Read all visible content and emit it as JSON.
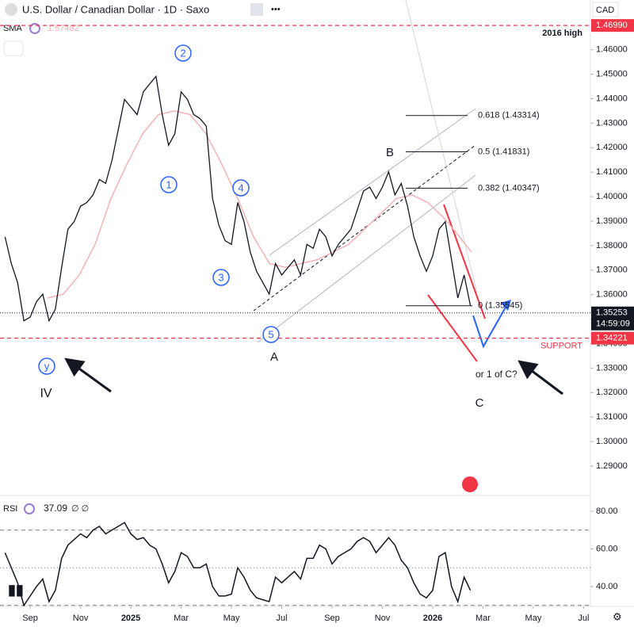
{
  "chart_data": {
    "type": "line",
    "title": "U.S. Dollar / Canadian Dollar · 1D · Saxo",
    "currency": "CAD",
    "color": "#131722",
    "x": [
      7,
      7.25,
      7.5,
      7.75,
      8,
      8.25,
      8.5,
      8.75,
      9,
      9.25,
      9.5,
      9.75,
      10,
      10.25,
      10.5,
      10.75,
      11,
      11.25,
      11.5,
      11.75,
      12,
      12.25,
      12.5,
      12.75,
      13,
      13.25,
      13.5,
      13.75,
      14,
      14.25,
      14.5,
      14.75,
      15,
      15.25,
      15.5,
      15.75,
      16,
      16.25,
      16.5,
      16.75,
      17,
      17.25,
      17.5,
      17.75,
      18,
      18.25,
      18.5,
      18.75,
      19,
      19.25,
      19.5,
      19.75,
      20,
      20.25,
      20.5,
      20.75,
      21,
      21.25,
      21.5,
      21.75,
      22,
      22.25,
      22.5,
      22.75,
      23,
      23.25,
      23.5,
      23.75,
      24,
      24.25,
      24.5,
      24.75,
      25,
      25.25,
      25.5
    ],
    "values": [
      1.3836,
      1.3727,
      1.3649,
      1.3493,
      1.3508,
      1.3571,
      1.3602,
      1.3493,
      1.354,
      1.3711,
      1.3867,
      1.3898,
      1.3961,
      1.3976,
      1.4007,
      1.407,
      1.4054,
      1.4148,
      1.4273,
      1.4397,
      1.4366,
      1.4335,
      1.4428,
      1.446,
      1.4491,
      1.4335,
      1.421,
      1.4257,
      1.4428,
      1.4397,
      1.4335,
      1.4319,
      1.4288,
      1.3992,
      1.3883,
      1.382,
      1.3805,
      1.3976,
      1.3898,
      1.3773,
      1.3695,
      1.3649,
      1.3602,
      1.3727,
      1.368,
      1.3711,
      1.3742,
      1.368,
      1.3805,
      1.3789,
      1.3867,
      1.3836,
      1.3758,
      1.3805,
      1.3836,
      1.3867,
      1.3945,
      1.4023,
      1.4039,
      1.3992,
      1.4039,
      1.4101,
      1.4007,
      1.4054,
      1.3961,
      1.3836,
      1.3758,
      1.3695,
      1.3758,
      1.3867,
      1.3898,
      1.3742,
      1.3586,
      1.368,
      1.3555
    ],
    "sma": {
      "name": "SMA",
      "value_label": "1.57482",
      "color": "#f4b2b5",
      "x": [
        8.69,
        9.32,
        9.95,
        10.58,
        11.21,
        11.84,
        12.47,
        13.1,
        13.73,
        14.36,
        14.99,
        15.62,
        16.25,
        16.88,
        17.51,
        18.14,
        18.77,
        19.4,
        20.03,
        20.66,
        21.29,
        21.92,
        22.55,
        23.18,
        23.81,
        24.44,
        25.07,
        25.54
      ],
      "values": [
        1.3586,
        1.3602,
        1.368,
        1.3805,
        1.3992,
        1.4132,
        1.4257,
        1.4335,
        1.435,
        1.4335,
        1.4257,
        1.4132,
        1.3992,
        1.3836,
        1.3727,
        1.3711,
        1.3727,
        1.3742,
        1.3773,
        1.3805,
        1.3867,
        1.3929,
        1.3992,
        1.4007,
        1.3976,
        1.3914,
        1.3836,
        1.3773
      ]
    },
    "xlim": [
      6.8,
      30.27
    ],
    "xticks": [
      {
        "value": 8,
        "label": "Sep"
      },
      {
        "value": 10,
        "label": "Nov"
      },
      {
        "value": 12,
        "label": "2025"
      },
      {
        "value": 14,
        "label": "Mar"
      },
      {
        "value": 16,
        "label": "May"
      },
      {
        "value": 18,
        "label": "Jul"
      },
      {
        "value": 20,
        "label": "Sep"
      },
      {
        "value": 22,
        "label": "Nov"
      },
      {
        "value": 24,
        "label": "2026"
      },
      {
        "value": 26,
        "label": "Mar"
      },
      {
        "value": 28,
        "label": "May"
      },
      {
        "value": 30,
        "label": "Jul"
      }
    ],
    "ylim": [
      1.4803,
      1.278
    ],
    "yticks": [
      {
        "value": 1.29,
        "label": "1.29000"
      },
      {
        "value": 1.3,
        "label": "1.30000"
      },
      {
        "value": 1.31,
        "label": "1.31000"
      },
      {
        "value": 1.32,
        "label": "1.32000"
      },
      {
        "value": 1.33,
        "label": "1.33000"
      },
      {
        "value": 1.34,
        "label": "1.34000"
      },
      {
        "value": 1.35,
        "label": "1.35000"
      },
      {
        "value": 1.36,
        "label": "1.36000"
      },
      {
        "value": 1.37,
        "label": "1.37000"
      },
      {
        "value": 1.38,
        "label": "1.38000"
      },
      {
        "value": 1.39,
        "label": "1.39000"
      },
      {
        "value": 1.4,
        "label": "1.40000"
      },
      {
        "value": 1.41,
        "label": "1.41000"
      },
      {
        "value": 1.42,
        "label": "1.42000"
      },
      {
        "value": 1.43,
        "label": "1.43000"
      },
      {
        "value": 1.44,
        "label": "1.44000"
      },
      {
        "value": 1.45,
        "label": "1.45000"
      },
      {
        "value": 1.46,
        "label": "1.46000"
      }
    ],
    "high_line": {
      "value": 1.4699,
      "label": "1.46990",
      "text": "2016 high"
    },
    "support_line": {
      "value": 1.34221,
      "label": "1.34221",
      "text": "SUPPORT"
    },
    "last_price": {
      "value": 1.35253,
      "label": "1.35253",
      "countdown": "14:59:09"
    },
    "fib_levels": [
      {
        "value": 1.43314,
        "label": "0.618 (1.43314)"
      },
      {
        "value": 1.41831,
        "label": "0.5 (1.41831)"
      },
      {
        "value": 1.40347,
        "label": "0.382 (1.40347)"
      },
      {
        "value": 1.35545,
        "label": "0 (1.35545)"
      }
    ],
    "wave_circles": [
      "1",
      "2",
      "3",
      "4",
      "5",
      "y"
    ],
    "wave_texts": [
      "IV",
      "A",
      "B",
      "C",
      "or 1 of C?"
    ],
    "rsi": {
      "name": "RSI",
      "value_label": "37.09",
      "extra": "∅ ∅",
      "color": "#131722",
      "values": [
        58,
        50,
        42,
        30,
        35,
        40,
        44,
        32,
        38,
        55,
        62,
        65,
        68,
        66,
        70,
        72,
        68,
        70,
        72,
        74,
        68,
        65,
        66,
        62,
        60,
        52,
        42,
        48,
        58,
        56,
        50,
        50,
        52,
        40,
        35,
        35,
        36,
        50,
        45,
        38,
        34,
        33,
        32,
        45,
        42,
        45,
        48,
        44,
        55,
        55,
        62,
        60,
        52,
        56,
        58,
        60,
        64,
        66,
        64,
        58,
        62,
        66,
        62,
        54,
        50,
        42,
        36,
        34,
        38,
        56,
        58,
        40,
        32,
        45,
        38
      ],
      "ylim": [
        88.42,
        29.47
      ],
      "yticks": [
        {
          "value": 40,
          "label": "40.00"
        },
        {
          "value": 60,
          "label": "60.00"
        },
        {
          "value": 80,
          "label": "80.00"
        }
      ],
      "levels": [
        70,
        50,
        30
      ]
    }
  }
}
